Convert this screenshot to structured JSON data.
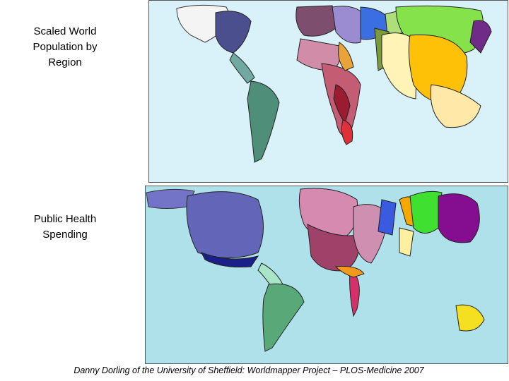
{
  "maps": [
    {
      "label": "Scaled World Population by Region"
    },
    {
      "label": "Public Health Spending"
    }
  ],
  "caption": "Danny Dorling of the University of Sheffield: Worldmapper Project – PLOS-Medicine 2007"
}
